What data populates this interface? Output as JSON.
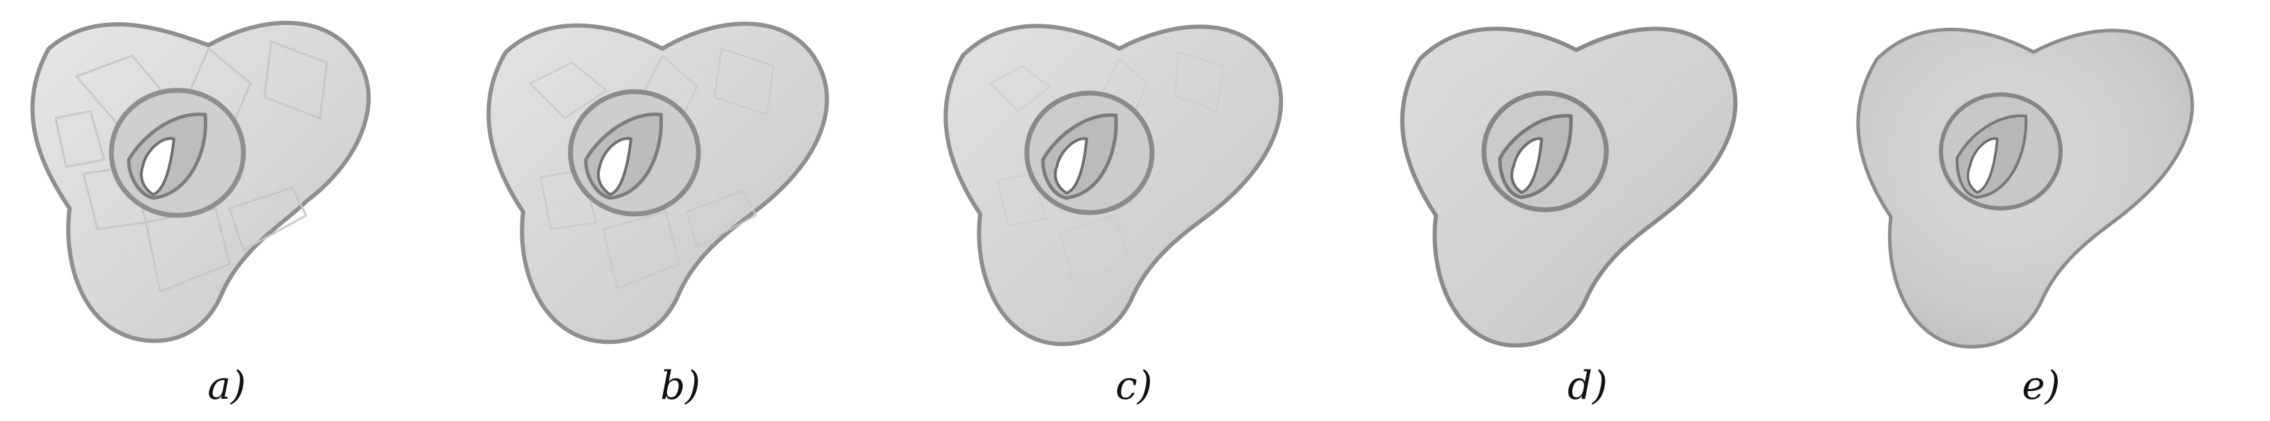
{
  "panels": [
    {
      "label": "a)",
      "smoothness": "coarse"
    },
    {
      "label": "b)",
      "smoothness": "coarse"
    },
    {
      "label": "c)",
      "smoothness": "medium"
    },
    {
      "label": "d)",
      "smoothness": "fine"
    },
    {
      "label": "e)",
      "smoothness": "smooth"
    }
  ],
  "colors": {
    "mesh_fill": "#d9d9d9",
    "mesh_edge": "#9a9a9a",
    "hole_fill": "#ffffff",
    "caption": "#111111"
  }
}
